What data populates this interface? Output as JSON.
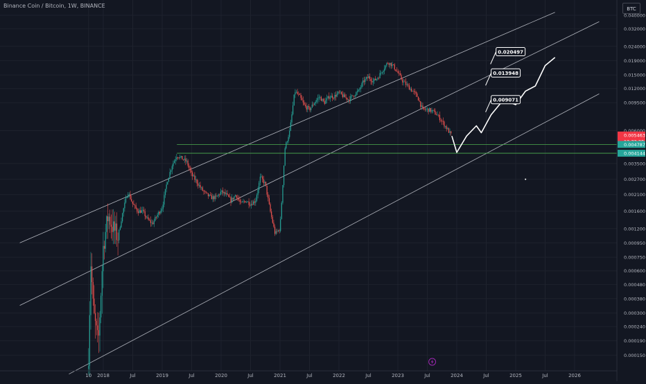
{
  "header": {
    "symbol_title": "Binance Coin / Bitcoin, 1W, BINANCE",
    "currency_label": "BTC"
  },
  "colors": {
    "background": "#131722",
    "grid": "#1e222d",
    "up_candle": "#26a69a",
    "down_candle": "#ef5350",
    "channel_line": "#d1d4dc",
    "horizontal_line": "#4caf50",
    "price_badge_red": "#f23645",
    "price_badge_green": "#26a69a",
    "axis_text": "#b2b5be",
    "lightning_icon": "#9c27b0"
  },
  "chart_data": {
    "type": "candlestick",
    "y_scale": "log",
    "x_ticks": [
      "10",
      "2018",
      "Jul",
      "2019",
      "Jul",
      "2020",
      "Jul",
      "2021",
      "Jul",
      "2022",
      "Jul",
      "2023",
      "Jul",
      "2024",
      "Jul",
      "2025",
      "Jul",
      "2026"
    ],
    "y_ticks": [
      "0.040000",
      "0.032000",
      "0.024000",
      "0.019000",
      "0.015000",
      "0.012000",
      "0.009500",
      "0.006000",
      "0.003500",
      "0.002700",
      "0.002100",
      "0.001600",
      "0.001200",
      "0.000950",
      "0.000750",
      "0.000600",
      "0.000480",
      "0.000380",
      "0.000300",
      "0.000240",
      "0.000190",
      "0.000150"
    ],
    "price_badges": [
      {
        "label": "0.005463",
        "color": "red"
      },
      {
        "label": "12:32:28",
        "color": "red"
      },
      {
        "label": "0.004787",
        "color": "green"
      },
      {
        "label": "0.004144",
        "color": "green"
      }
    ],
    "horizontal_levels": [
      0.004787,
      0.004144
    ],
    "annotations": [
      "0.020497",
      "0.013948",
      "0.009071"
    ],
    "price_path": [
      [
        "2017-10",
        0.00015
      ],
      [
        "2017-10-15",
        0.0007
      ],
      [
        "2017-11",
        0.0003
      ],
      [
        "2017-12",
        0.00018
      ],
      [
        "2018-01",
        0.0009
      ],
      [
        "2018-02",
        0.0015
      ],
      [
        "2018-03",
        0.0012
      ],
      [
        "2018-04",
        0.00105
      ],
      [
        "2018-05",
        0.0016
      ],
      [
        "2018-06",
        0.0022
      ],
      [
        "2018-07",
        0.0018
      ],
      [
        "2018-08",
        0.0016
      ],
      [
        "2018-09",
        0.0016
      ],
      [
        "2018-10",
        0.0014
      ],
      [
        "2018-11",
        0.0013
      ],
      [
        "2018-12",
        0.0015
      ],
      [
        "2019-01",
        0.0017
      ],
      [
        "2019-02",
        0.0026
      ],
      [
        "2019-03",
        0.0034
      ],
      [
        "2019-04",
        0.004
      ],
      [
        "2019-05",
        0.0038
      ],
      [
        "2019-06",
        0.0036
      ],
      [
        "2019-07",
        0.0029
      ],
      [
        "2019-08",
        0.0026
      ],
      [
        "2019-09",
        0.0023
      ],
      [
        "2019-10",
        0.0021
      ],
      [
        "2019-11",
        0.002
      ],
      [
        "2019-12",
        0.002
      ],
      [
        "2020-01",
        0.0022
      ],
      [
        "2020-02",
        0.0021
      ],
      [
        "2020-03",
        0.0019
      ],
      [
        "2020-04",
        0.0021
      ],
      [
        "2020-05",
        0.0018
      ],
      [
        "2020-06",
        0.0019
      ],
      [
        "2020-07",
        0.0018
      ],
      [
        "2020-08",
        0.0019
      ],
      [
        "2020-09",
        0.0028
      ],
      [
        "2020-10",
        0.0025
      ],
      [
        "2020-11",
        0.0016
      ],
      [
        "2020-12",
        0.0011
      ],
      [
        "2021-01",
        0.0012
      ],
      [
        "2021-02",
        0.0045
      ],
      [
        "2021-03",
        0.006
      ],
      [
        "2021-04",
        0.0115
      ],
      [
        "2021-05",
        0.0105
      ],
      [
        "2021-06",
        0.009
      ],
      [
        "2021-07",
        0.0085
      ],
      [
        "2021-08",
        0.0095
      ],
      [
        "2021-09",
        0.0105
      ],
      [
        "2021-10",
        0.0095
      ],
      [
        "2021-11",
        0.0105
      ],
      [
        "2021-12",
        0.0105
      ],
      [
        "2022-01",
        0.0112
      ],
      [
        "2022-02",
        0.0105
      ],
      [
        "2022-03",
        0.01
      ],
      [
        "2022-04",
        0.0108
      ],
      [
        "2022-05",
        0.0115
      ],
      [
        "2022-06",
        0.0135
      ],
      [
        "2022-07",
        0.0145
      ],
      [
        "2022-08",
        0.0135
      ],
      [
        "2022-09",
        0.0145
      ],
      [
        "2022-10",
        0.0165
      ],
      [
        "2022-11",
        0.0185
      ],
      [
        "2022-12",
        0.0175
      ],
      [
        "2023-01",
        0.0155
      ],
      [
        "2023-02",
        0.0135
      ],
      [
        "2023-03",
        0.0125
      ],
      [
        "2023-04",
        0.0115
      ],
      [
        "2023-05",
        0.0105
      ],
      [
        "2023-06",
        0.0085
      ],
      [
        "2023-07",
        0.0085
      ],
      [
        "2023-08",
        0.0083
      ],
      [
        "2023-09",
        0.0078
      ],
      [
        "2023-10",
        0.007
      ],
      [
        "2023-11",
        0.0062
      ],
      [
        "2023-12",
        0.0055
      ]
    ],
    "projection_path": [
      [
        "2023-12",
        0.0055
      ],
      [
        "2024-01",
        0.0042
      ],
      [
        "2024-03",
        0.0055
      ],
      [
        "2024-05",
        0.0065
      ],
      [
        "2024-06",
        0.0058
      ],
      [
        "2024-08",
        0.0078
      ],
      [
        "2024-10",
        0.0095
      ],
      [
        "2024-12",
        0.0095
      ],
      [
        "2025-01",
        0.0092
      ],
      [
        "2025-03",
        0.0115
      ],
      [
        "2025-05",
        0.0125
      ],
      [
        "2025-07",
        0.0175
      ],
      [
        "2025-09",
        0.02
      ]
    ],
    "channel_lines": [
      [
        [
          "2016-08",
          0.00095
        ],
        [
          "2025-09",
          0.042
        ]
      ],
      [
        [
          "2016-08",
          0.00034
        ],
        [
          "2026-06",
          0.036
        ]
      ],
      [
        [
          "2017-06",
          0.00011
        ],
        [
          "2026-06",
          0.011
        ]
      ]
    ]
  }
}
